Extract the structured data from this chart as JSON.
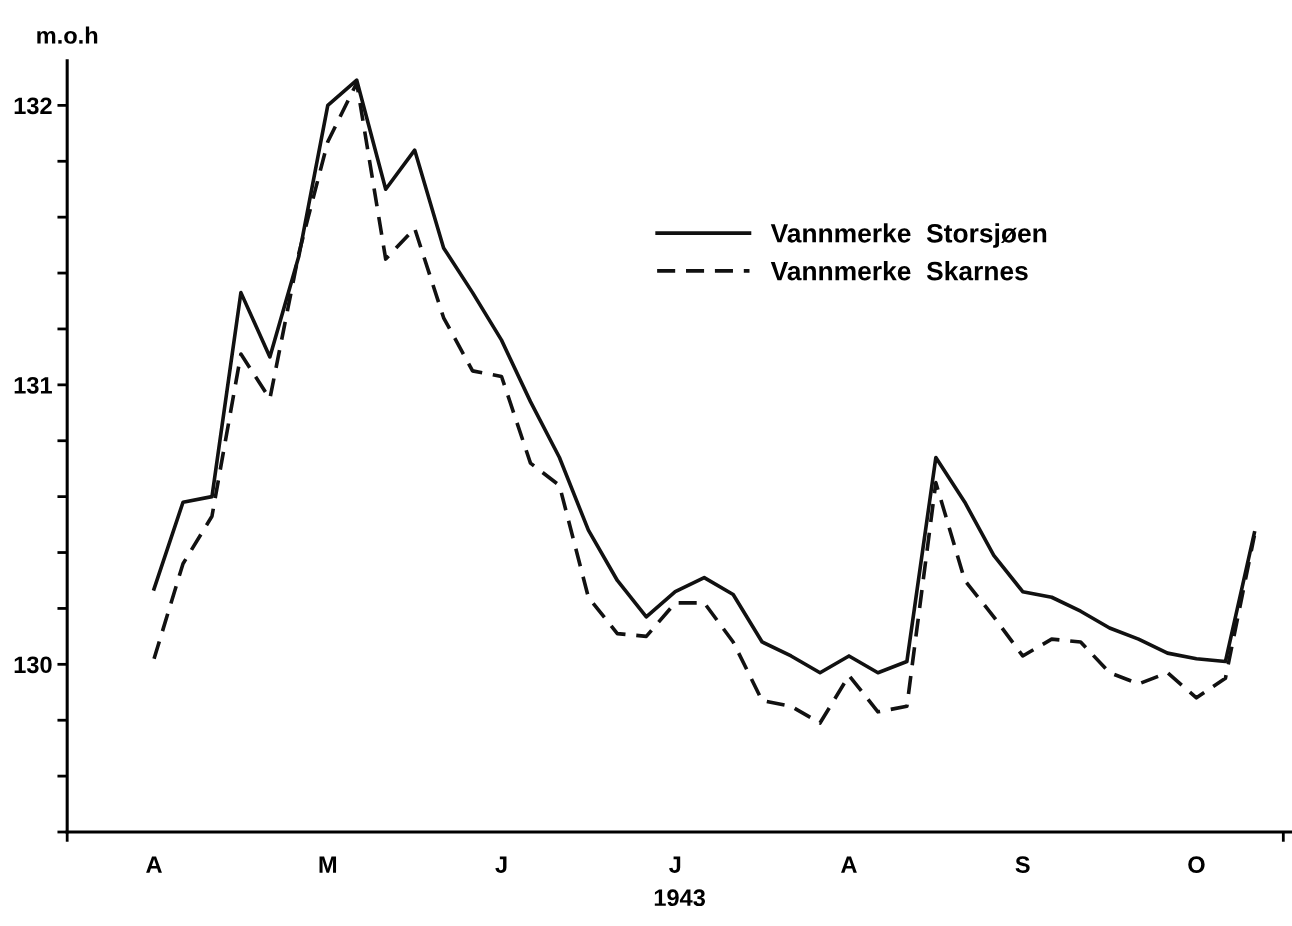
{
  "chart_data": {
    "type": "line",
    "xlabel": "1943",
    "ylabel": "m.o.h",
    "categories": [
      "A",
      null,
      null,
      null,
      null,
      null,
      "M",
      null,
      null,
      null,
      null,
      null,
      "J",
      null,
      null,
      null,
      null,
      null,
      "J",
      null,
      null,
      null,
      null,
      null,
      "A",
      null,
      null,
      null,
      null,
      null,
      "S",
      null,
      null,
      null,
      null,
      null,
      "O",
      null,
      null
    ],
    "series": [
      {
        "name": "Vannmerke  Storsjøen",
        "color": "#111111",
        "line_style": "solid",
        "values": [
          130.27,
          130.58,
          130.6,
          131.33,
          131.1,
          131.46,
          132.0,
          132.09,
          131.7,
          131.84,
          131.49,
          131.33,
          131.16,
          130.94,
          130.74,
          130.48,
          130.3,
          130.17,
          130.26,
          130.31,
          130.25,
          130.08,
          130.03,
          129.97,
          130.03,
          129.97,
          130.01,
          130.74,
          130.58,
          130.39,
          130.26,
          130.24,
          130.19,
          130.13,
          130.09,
          130.04,
          130.02,
          130.01,
          130.47
        ]
      },
      {
        "name": "Vannmerke  Skarnes",
        "color": "#111111",
        "line_style": "dashed",
        "values": [
          130.02,
          130.36,
          130.53,
          131.11,
          130.95,
          131.47,
          131.87,
          132.08,
          131.45,
          131.56,
          131.24,
          131.05,
          131.03,
          130.72,
          130.64,
          130.24,
          130.11,
          130.1,
          130.22,
          130.22,
          130.08,
          129.87,
          129.85,
          129.79,
          129.96,
          129.83,
          129.85,
          130.65,
          130.3,
          130.17,
          130.03,
          130.09,
          130.08,
          129.97,
          129.93,
          129.97,
          129.88,
          129.95,
          130.46
        ]
      }
    ],
    "ylim": [
      129.4,
      132.16
    ],
    "yticks": [
      130,
      131,
      132
    ],
    "legend": "top right",
    "grid": false,
    "marker": "none"
  }
}
